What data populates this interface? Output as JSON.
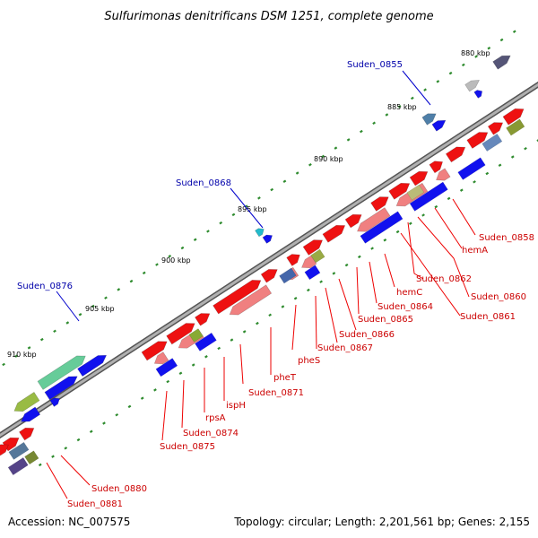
{
  "header": {
    "title": "Sulfurimonas denitrificans DSM 1251, complete genome"
  },
  "footer": {
    "accession": "Accession: NC_007575",
    "stats": "Topology: circular; Length: 2,201,561 bp; Genes: 2,155"
  },
  "colors": {
    "forward_cds": "#ee0000",
    "reverse_cds": "#0000dd",
    "backbone": "#888888",
    "tick": "#228822",
    "label_red": "#cc0000",
    "label_blue": "#0000aa"
  },
  "scale_ticks": [
    {
      "label": "880 kbp",
      "kbp": 880
    },
    {
      "label": "885 kbp",
      "kbp": 885
    },
    {
      "label": "890 kbp",
      "kbp": 890
    },
    {
      "label": "895 kbp",
      "kbp": 895
    },
    {
      "label": "900 kbp",
      "kbp": 900
    },
    {
      "label": "905 kbp",
      "kbp": 905
    },
    {
      "label": "910 kbp",
      "kbp": 910
    }
  ],
  "gene_labels_red": [
    "Suden_0858",
    "hemA",
    "Suden_0862",
    "Suden_0860",
    "Suden_0861",
    "hemC",
    "Suden_0864",
    "Suden_0865",
    "Suden_0866",
    "Suden_0867",
    "pheS",
    "pheT",
    "Suden_0871",
    "ispH",
    "rpsA",
    "Suden_0874",
    "Suden_0875",
    "Suden_0880",
    "Suden_0881"
  ],
  "gene_labels_blue": [
    "Suden_0855",
    "Suden_0868",
    "Suden_0876"
  ]
}
